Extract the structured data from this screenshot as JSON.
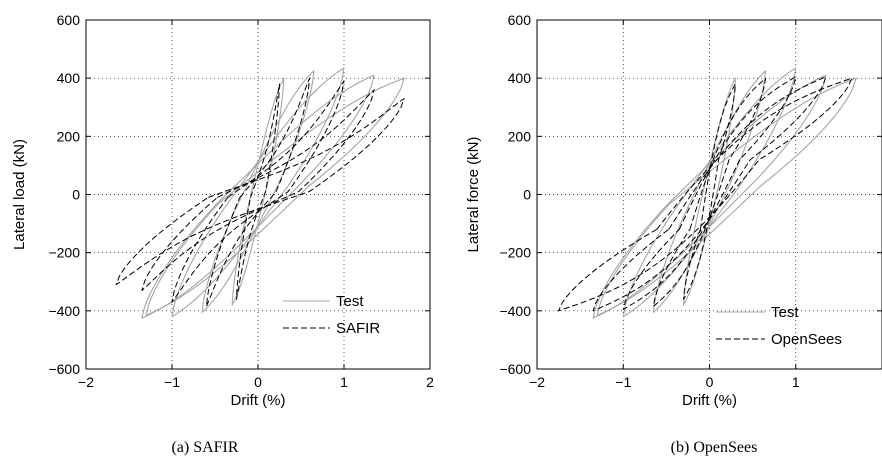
{
  "chart_data": [
    {
      "type": "line",
      "caption": "(a)   SAFIR",
      "xlabel": "Drift (%)",
      "ylabel": "Lateral load (kN)",
      "xlim": [
        -2,
        2
      ],
      "ylim": [
        -600,
        600
      ],
      "xticks": [
        -2,
        -1,
        0,
        1,
        2
      ],
      "yticks": [
        600,
        400,
        200,
        0,
        -200,
        -400,
        -600
      ],
      "xtick_labels": [
        "−2",
        "−1",
        "0",
        "1",
        "2"
      ],
      "ytick_labels": [
        "600",
        "400",
        "200",
        "0",
        "−200",
        "−400",
        "−600"
      ],
      "grid": true,
      "legend_position": "lower-right",
      "series": [
        {
          "name": "Test",
          "color": "#a6a6a6",
          "style": "solid",
          "loops": [
            {
              "pos": [
                0.3,
                400
              ],
              "neg": [
                -0.3,
                -380
              ]
            },
            {
              "pos": [
                0.65,
                425
              ],
              "neg": [
                -0.65,
                -405
              ]
            },
            {
              "pos": [
                1.0,
                435
              ],
              "neg": [
                -1.0,
                -420
              ]
            },
            {
              "pos": [
                1.35,
                410
              ],
              "neg": [
                -1.35,
                -425
              ]
            },
            {
              "pos": [
                1.7,
                400
              ],
              "neg": [
                -1.3,
                -415
              ]
            }
          ]
        },
        {
          "name": "SAFIR",
          "color": "#000000",
          "style": "dashed",
          "loops": [
            {
              "pos": [
                0.25,
                380
              ],
              "neg": [
                -0.25,
                -360
              ]
            },
            {
              "pos": [
                0.6,
                400
              ],
              "neg": [
                -0.6,
                -385
              ]
            },
            {
              "pos": [
                1.0,
                390
              ],
              "neg": [
                -1.0,
                -370
              ]
            },
            {
              "pos": [
                1.35,
                360
              ],
              "neg": [
                -1.35,
                -330
              ]
            },
            {
              "pos": [
                1.7,
                330
              ],
              "neg": [
                -1.65,
                -310
              ]
            }
          ]
        }
      ]
    },
    {
      "type": "line",
      "caption": "(b) OpenSees",
      "xlabel": "Drift (%)",
      "ylabel": "Lateral force (kN)",
      "xlim": [
        -2,
        2
      ],
      "ylim": [
        -600,
        600
      ],
      "xticks": [
        -2,
        -1,
        0,
        1
      ],
      "yticks": [
        600,
        400,
        200,
        0,
        -200,
        -400,
        -600
      ],
      "xtick_labels": [
        "−2",
        "−1",
        "0",
        "1"
      ],
      "ytick_labels": [
        "600",
        "400",
        "200",
        "0",
        "−200",
        "−400",
        "−600"
      ],
      "grid": true,
      "legend_position": "lower-right",
      "series": [
        {
          "name": "Test",
          "color": "#a6a6a6",
          "style": "solid",
          "loops": [
            {
              "pos": [
                0.3,
                400
              ],
              "neg": [
                -0.3,
                -380
              ]
            },
            {
              "pos": [
                0.65,
                425
              ],
              "neg": [
                -0.65,
                -405
              ]
            },
            {
              "pos": [
                1.0,
                435
              ],
              "neg": [
                -1.0,
                -420
              ]
            },
            {
              "pos": [
                1.35,
                410
              ],
              "neg": [
                -1.35,
                -425
              ]
            },
            {
              "pos": [
                1.7,
                400
              ],
              "neg": [
                -1.3,
                -415
              ]
            }
          ]
        },
        {
          "name": "OpenSees",
          "color": "#000000",
          "style": "dashed",
          "loops": [
            {
              "pos": [
                0.3,
                380
              ],
              "neg": [
                -0.3,
                -360
              ]
            },
            {
              "pos": [
                0.65,
                400
              ],
              "neg": [
                -0.65,
                -385
              ]
            },
            {
              "pos": [
                1.0,
                405
              ],
              "neg": [
                -1.0,
                -395
              ]
            },
            {
              "pos": [
                1.35,
                405
              ],
              "neg": [
                -1.35,
                -400
              ]
            },
            {
              "pos": [
                1.65,
                400
              ],
              "neg": [
                -1.75,
                -400
              ]
            }
          ]
        }
      ]
    }
  ]
}
